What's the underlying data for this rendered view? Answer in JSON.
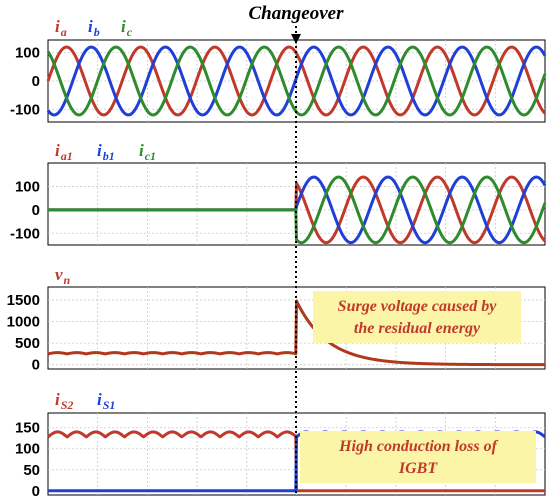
{
  "changeover": {
    "label": "Changeover"
  },
  "chart_data": [
    {
      "type": "line",
      "id": "source-currents",
      "legend": [
        {
          "main": "i",
          "sub": "a",
          "color": "#c0392b"
        },
        {
          "main": "i",
          "sub": "b",
          "color": "#1f3fd6"
        },
        {
          "main": "i",
          "sub": "c",
          "color": "#2e8b2e"
        }
      ],
      "yticks": [
        100,
        0,
        -100
      ],
      "ylim": [
        -145,
        145
      ],
      "grid": true,
      "series": [
        {
          "color": "#c0392b",
          "amplitude": 120,
          "phase_deg": 0,
          "cycles": 6.7,
          "start": 0,
          "end": 1
        },
        {
          "color": "#1f3fd6",
          "amplitude": 120,
          "phase_deg": -120,
          "cycles": 6.7,
          "start": 0,
          "end": 1
        },
        {
          "color": "#2e8b2e",
          "amplitude": 120,
          "phase_deg": 120,
          "cycles": 6.7,
          "start": 0,
          "end": 1
        }
      ]
    },
    {
      "type": "line",
      "id": "branch-currents",
      "legend": [
        {
          "main": "i",
          "sub": "a1",
          "color": "#c0392b"
        },
        {
          "main": "i",
          "sub": "b1",
          "color": "#1f3fd6"
        },
        {
          "main": "i",
          "sub": "c1",
          "color": "#2e8b2e"
        }
      ],
      "yticks": [
        100,
        0,
        -100
      ],
      "ylim": [
        -150,
        200
      ],
      "grid": true,
      "series": [
        {
          "color": "#c0392b",
          "amplitude": 140,
          "phase_deg": 0,
          "cycles": 6.7,
          "start": 0.4,
          "end": 1,
          "zero_before": true
        },
        {
          "color": "#1f3fd6",
          "amplitude": 140,
          "phase_deg": -120,
          "cycles": 6.7,
          "start": 0.4,
          "end": 1,
          "zero_before": true
        },
        {
          "color": "#2e8b2e",
          "amplitude": 140,
          "phase_deg": 120,
          "cycles": 6.7,
          "start": 0.4,
          "end": 1,
          "zero_before": true
        }
      ]
    },
    {
      "type": "line",
      "id": "neutral-voltage",
      "legend": [
        {
          "main": "v",
          "sub": "n",
          "color": "#c0392b"
        }
      ],
      "yticks": [
        1500,
        1000,
        500,
        0
      ],
      "ylim": [
        -100,
        1800
      ],
      "grid": true,
      "series": [
        {
          "color": "#b0391c",
          "kind": "ripple-then-surge",
          "before_level": 250,
          "ripple": 30,
          "surge_peak": 1500,
          "decay_to": 0
        }
      ],
      "annotation": {
        "lines": [
          "Surge voltage caused by",
          "the residual energy"
        ],
        "color": "#c0392b",
        "background": "#fbf5a8"
      }
    },
    {
      "type": "line",
      "id": "switch-currents",
      "legend": [
        {
          "main": "i",
          "sub": "S2",
          "color": "#c0392b"
        },
        {
          "main": "i",
          "sub": "S1",
          "color": "#1f3fd6"
        }
      ],
      "yticks": [
        150,
        100,
        50,
        0
      ],
      "ylim": [
        -10,
        185
      ],
      "grid": true,
      "series": [
        {
          "color": "#c0392b",
          "kind": "ripple-before",
          "level": 140,
          "ripple": 12,
          "after": 0
        },
        {
          "color": "#1f3fd6",
          "kind": "ripple-after",
          "level": 140,
          "ripple": 12,
          "before": 0
        }
      ],
      "annotation": {
        "lines": [
          "High conduction loss of",
          "IGBT"
        ],
        "color": "#c0392b",
        "background": "#fbf5a8"
      }
    }
  ]
}
